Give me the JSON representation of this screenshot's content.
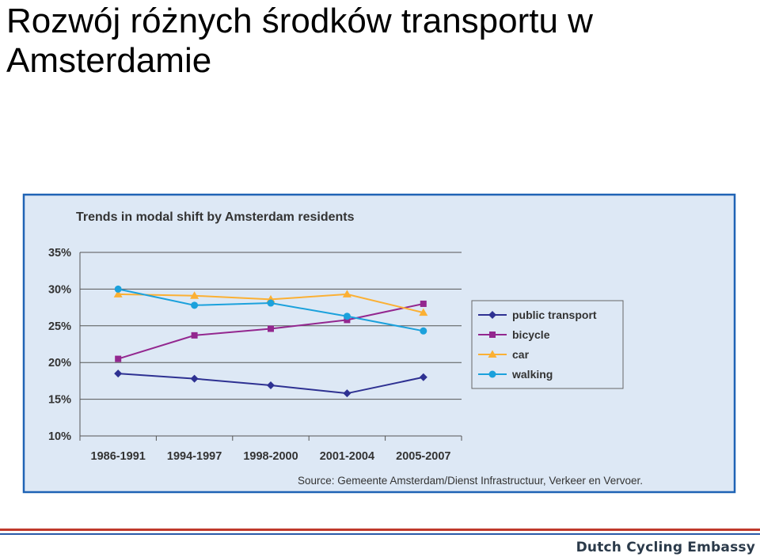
{
  "slide_title": "Rozwój różnych środków transportu w Amsterdamie",
  "footer_brand": "Dutch Cycling Embassy",
  "colors": {
    "frame": "#1f63b5",
    "panel": "#dde8f5",
    "public transport": "#2e3192",
    "bicycle": "#93278f",
    "car": "#fbb034",
    "walking": "#1ba1dc"
  },
  "chart_data": {
    "type": "line",
    "title": "Trends in modal shift by Amsterdam residents",
    "source": "Source: Gemeente Amsterdam/Dienst Infrastructuur, Verkeer en Vervoer.",
    "categories": [
      "1986-1991",
      "1994-1997",
      "1998-2000",
      "2001-2004",
      "2005-2007"
    ],
    "y_ticks": [
      "10%",
      "15%",
      "20%",
      "25%",
      "30%",
      "35%"
    ],
    "ylim": [
      10,
      35
    ],
    "grid": true,
    "legend": "right",
    "series": [
      {
        "name": "public transport",
        "marker": "diamond",
        "values": [
          18.5,
          17.8,
          16.9,
          15.8,
          18.0
        ]
      },
      {
        "name": "bicycle",
        "marker": "square",
        "values": [
          20.5,
          23.7,
          24.6,
          25.8,
          28.0
        ]
      },
      {
        "name": "car",
        "marker": "triangle",
        "values": [
          29.3,
          29.1,
          28.6,
          29.3,
          26.8
        ]
      },
      {
        "name": "walking",
        "marker": "circle",
        "values": [
          30.0,
          27.8,
          28.1,
          26.3,
          24.3
        ]
      }
    ]
  }
}
